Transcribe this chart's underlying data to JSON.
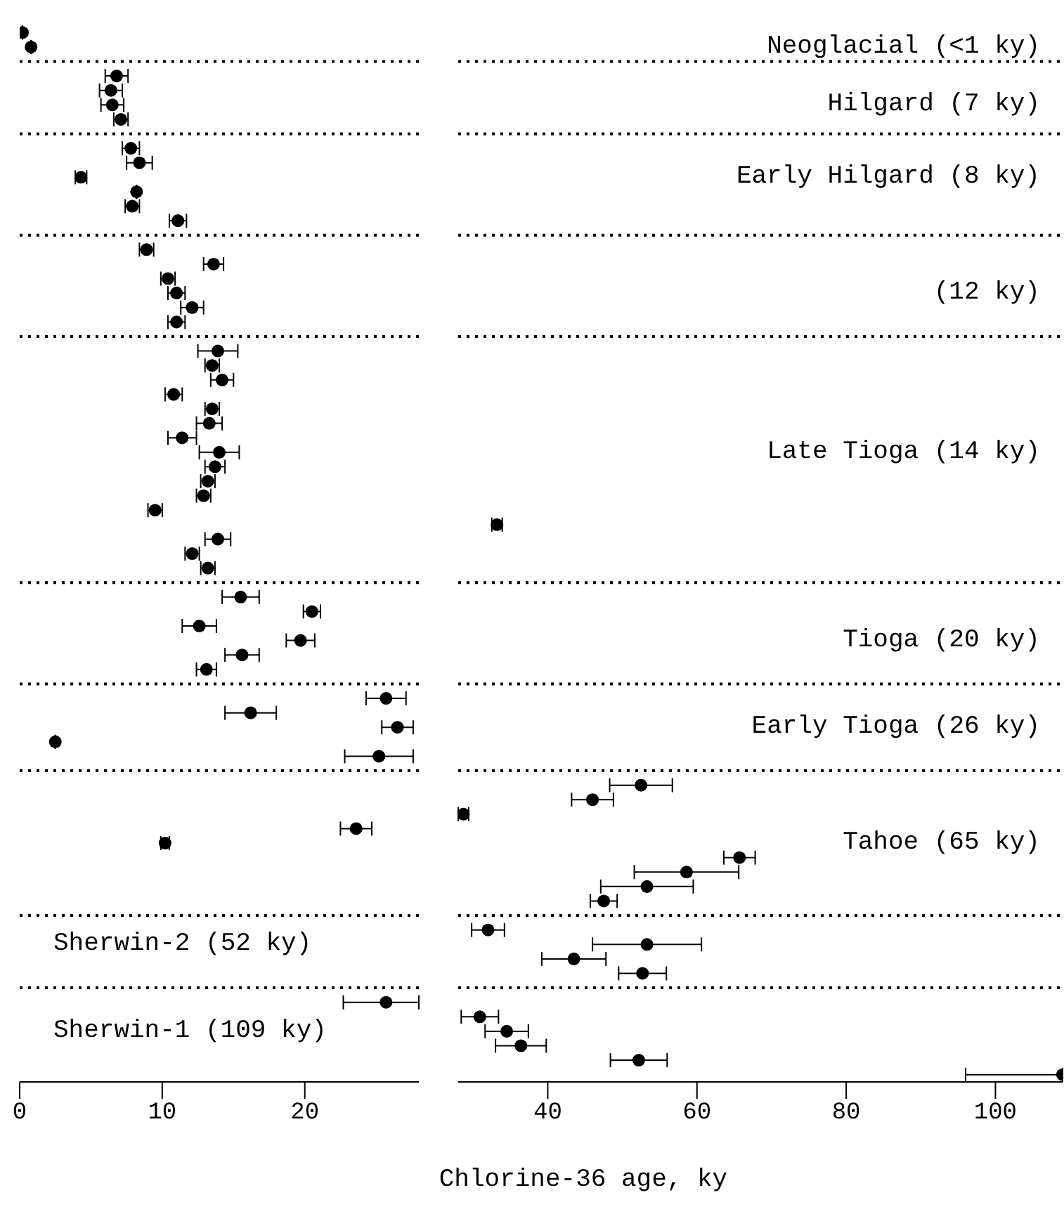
{
  "chart_data": [
    {
      "type": "scatter",
      "orientation": "horizontal",
      "marker": "circle",
      "grid": "y",
      "color": "#000000",
      "categories": [
        null,
        null,
        null,
        null,
        null,
        null,
        null,
        null,
        null,
        null,
        null,
        null,
        null,
        null,
        null,
        null,
        null,
        null,
        null,
        null,
        null,
        null,
        null,
        null,
        null,
        null,
        null,
        null,
        null,
        null,
        null,
        null,
        null,
        null,
        null,
        null,
        null,
        null,
        null,
        null,
        null,
        null,
        null,
        null,
        null,
        null,
        null,
        null,
        null,
        null,
        null,
        null,
        null,
        null,
        null,
        null,
        null,
        null,
        null,
        null,
        null,
        null,
        null,
        "Sherwin-2 (52 ky)",
        null,
        null,
        null,
        null,
        null,
        "Sherwin-1 (109 ky)",
        null,
        null,
        null
      ],
      "xlim": [
        0,
        28
      ],
      "xticks": [
        0,
        10,
        20
      ],
      "values": [
        0.2,
        0.8,
        null,
        6.8,
        6.4,
        6.5,
        7.1,
        null,
        7.8,
        8.4,
        4.3,
        8.2,
        7.9,
        11.1,
        null,
        8.9,
        13.6,
        10.4,
        11.0,
        12.1,
        11.0,
        null,
        13.9,
        13.5,
        14.2,
        10.8,
        13.5,
        13.3,
        11.4,
        14.0,
        13.7,
        13.2,
        12.9,
        9.5,
        null,
        13.9,
        12.1,
        13.2,
        null,
        15.5,
        20.5,
        12.6,
        19.7,
        15.6,
        13.1,
        null,
        25.7,
        16.2,
        26.5,
        2.5,
        25.2,
        null,
        null,
        null,
        null,
        23.6,
        10.2,
        null,
        null,
        null,
        null,
        null,
        null,
        null,
        null,
        null,
        null,
        25.7,
        null,
        null,
        null,
        null,
        null
      ],
      "errors": [
        null,
        null,
        null,
        0.8,
        0.8,
        0.8,
        0.5,
        null,
        0.6,
        0.9,
        0.4,
        null,
        0.5,
        0.6,
        null,
        0.5,
        0.7,
        0.5,
        0.6,
        0.8,
        0.6,
        null,
        1.4,
        0.5,
        0.8,
        0.6,
        0.5,
        0.9,
        1.0,
        1.4,
        0.7,
        0.5,
        0.5,
        0.5,
        null,
        0.9,
        0.5,
        0.5,
        null,
        1.3,
        0.6,
        1.2,
        1.0,
        1.2,
        0.7,
        null,
        1.4,
        1.8,
        1.1,
        null,
        2.4,
        null,
        null,
        null,
        null,
        1.1,
        0.3,
        null,
        null,
        null,
        null,
        null,
        null,
        null,
        null,
        null,
        null,
        [
          22.7,
          28
        ],
        null,
        null,
        null,
        null,
        null
      ]
    },
    {
      "type": "scatter",
      "orientation": "horizontal",
      "marker": "circle",
      "grid": "y",
      "color": "#000000",
      "xlabel": "Chlorine-36 age, ky",
      "categories": [
        null,
        "Neoglacial (<1 ky)",
        null,
        null,
        null,
        "Hilgard (7 ky)",
        null,
        null,
        null,
        null,
        "Early Hilgard (8 ky)",
        null,
        null,
        null,
        null,
        null,
        null,
        null,
        "(12 ky)",
        null,
        null,
        null,
        null,
        null,
        null,
        null,
        null,
        null,
        null,
        "Late Tioga (14 ky)",
        null,
        null,
        null,
        null,
        null,
        null,
        null,
        null,
        null,
        null,
        null,
        null,
        "Tioga (20 ky)",
        null,
        null,
        null,
        null,
        null,
        "Early Tioga (26 ky)",
        null,
        null,
        null,
        null,
        null,
        null,
        null,
        "Tahoe (65 ky)",
        null,
        null,
        null,
        null,
        null,
        null,
        null,
        null,
        null,
        null,
        null,
        null,
        null,
        null,
        null,
        null
      ],
      "xlim": [
        28,
        109
      ],
      "xticks": [
        40,
        60,
        80,
        100
      ],
      "values": [
        null,
        null,
        null,
        null,
        null,
        null,
        null,
        null,
        null,
        null,
        null,
        null,
        null,
        null,
        null,
        null,
        null,
        null,
        null,
        null,
        null,
        null,
        null,
        null,
        null,
        null,
        null,
        null,
        null,
        null,
        null,
        null,
        null,
        null,
        33.2,
        null,
        null,
        null,
        null,
        null,
        null,
        null,
        null,
        null,
        null,
        null,
        null,
        null,
        null,
        null,
        null,
        null,
        52.5,
        46.0,
        28.7,
        null,
        null,
        65.7,
        58.6,
        53.3,
        47.5,
        null,
        32.0,
        53.3,
        43.5,
        52.7,
        null,
        null,
        30.9,
        34.5,
        36.4,
        52.2,
        109
      ],
      "errors": [
        null,
        null,
        null,
        null,
        null,
        null,
        null,
        null,
        null,
        null,
        null,
        null,
        null,
        null,
        null,
        null,
        null,
        null,
        null,
        null,
        null,
        null,
        null,
        null,
        null,
        null,
        null,
        null,
        null,
        null,
        null,
        null,
        null,
        null,
        0.7,
        null,
        null,
        null,
        null,
        null,
        null,
        null,
        null,
        null,
        null,
        null,
        null,
        null,
        null,
        null,
        null,
        null,
        4.2,
        2.8,
        0.7,
        null,
        null,
        2.1,
        7.0,
        6.2,
        1.8,
        null,
        2.2,
        7.3,
        4.3,
        3.2,
        null,
        null,
        2.5,
        2.9,
        3.4,
        3.8,
        [
          96,
          109
        ]
      ]
    }
  ]
}
